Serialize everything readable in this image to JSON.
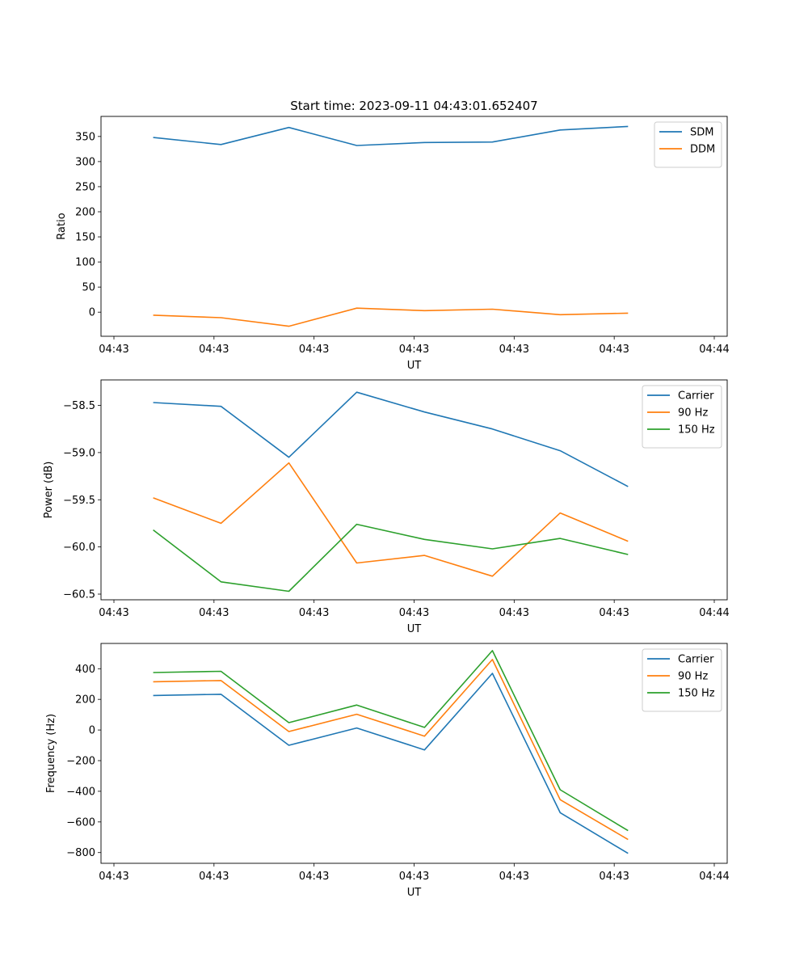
{
  "chart_data": [
    {
      "type": "line",
      "title": "Start time: 2023-09-11 04:43:01.652407",
      "xlabel": "UT",
      "ylabel": "Ratio",
      "x_ticks": [
        "04:43",
        "04:43",
        "04:43",
        "04:43",
        "04:43",
        "04:43",
        "04:44"
      ],
      "y_ticks": [
        350,
        300,
        250,
        200,
        150,
        100,
        50,
        0
      ],
      "ylim": [
        -48,
        390
      ],
      "legend": "top-right",
      "x": [
        0.5,
        1.15,
        1.8,
        2.45,
        3.1,
        3.75,
        4.4,
        5.05
      ],
      "xlim": [
        0,
        6
      ],
      "series": [
        {
          "name": "SDM",
          "color": "#1f77b4",
          "values": [
            348,
            334,
            368,
            332,
            338,
            339,
            363,
            370
          ]
        },
        {
          "name": "DDM",
          "color": "#ff7f0e",
          "values": [
            -6,
            -11,
            -28,
            8,
            3,
            6,
            -5,
            -2
          ]
        }
      ]
    },
    {
      "type": "line",
      "title": "",
      "xlabel": "UT",
      "ylabel": "Power (dB)",
      "x_ticks": [
        "04:43",
        "04:43",
        "04:43",
        "04:43",
        "04:43",
        "04:43",
        "04:44"
      ],
      "y_ticks": [
        "−58.5",
        "−59.0",
        "−59.5",
        "−60.0",
        "−60.5"
      ],
      "y_tick_values": [
        -58.5,
        -59.0,
        -59.5,
        -60.0,
        -60.5
      ],
      "ylim": [
        -60.56,
        -58.23
      ],
      "legend": "top-right",
      "x": [
        0.5,
        1.15,
        1.8,
        2.45,
        3.1,
        3.75,
        4.4,
        5.05
      ],
      "xlim": [
        0,
        6
      ],
      "series": [
        {
          "name": "Carrier",
          "color": "#1f77b4",
          "values": [
            -58.47,
            -58.51,
            -59.05,
            -58.36,
            -58.57,
            -58.75,
            -58.98,
            -59.36
          ]
        },
        {
          "name": "90 Hz",
          "color": "#ff7f0e",
          "values": [
            -59.48,
            -59.75,
            -59.11,
            -60.17,
            -60.09,
            -60.31,
            -59.64,
            -59.94
          ]
        },
        {
          "name": "150 Hz",
          "color": "#2ca02c",
          "values": [
            -59.82,
            -60.37,
            -60.47,
            -59.76,
            -59.92,
            -60.02,
            -59.91,
            -60.08
          ]
        }
      ]
    },
    {
      "type": "line",
      "title": "",
      "xlabel": "UT",
      "ylabel": "Frequency (Hz)",
      "x_ticks": [
        "04:43",
        "04:43",
        "04:43",
        "04:43",
        "04:43",
        "04:43",
        "04:44"
      ],
      "y_ticks": [
        "400",
        "200",
        "0",
        "−200",
        "−400",
        "−600",
        "−800"
      ],
      "y_tick_values": [
        400,
        200,
        0,
        -200,
        -400,
        -600,
        -800
      ],
      "ylim": [
        -870,
        565
      ],
      "legend": "top-right",
      "x": [
        0.5,
        1.15,
        1.8,
        2.45,
        3.1,
        3.75,
        4.4,
        5.05
      ],
      "xlim": [
        0,
        6
      ],
      "series": [
        {
          "name": "Carrier",
          "color": "#1f77b4",
          "values": [
            225,
            233,
            -100,
            13,
            -130,
            370,
            -540,
            -805
          ]
        },
        {
          "name": "90 Hz",
          "color": "#ff7f0e",
          "values": [
            315,
            323,
            -10,
            103,
            -40,
            460,
            -455,
            -715
          ]
        },
        {
          "name": "150 Hz",
          "color": "#2ca02c",
          "values": [
            375,
            383,
            48,
            163,
            17,
            518,
            -390,
            -657
          ]
        }
      ]
    }
  ]
}
